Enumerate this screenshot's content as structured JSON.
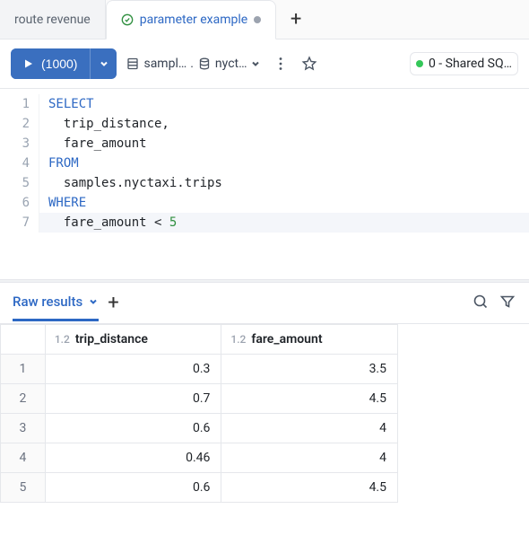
{
  "tabs": {
    "items": [
      {
        "label": "route revenue",
        "active": false
      },
      {
        "label": "parameter example",
        "active": true,
        "dirty": true,
        "status": "ok"
      }
    ]
  },
  "toolbar": {
    "run_count": "(1000)",
    "catalog_label": "sampl…",
    "schema_label": "nyct…",
    "cluster_label": "0 - Shared SQ…"
  },
  "editor": {
    "lines": [
      {
        "n": 1,
        "kw": "SELECT",
        "rest": ""
      },
      {
        "n": 2,
        "indent": 1,
        "rest": "trip_distance,"
      },
      {
        "n": 3,
        "indent": 1,
        "rest": "fare_amount"
      },
      {
        "n": 4,
        "kw": "FROM",
        "rest": ""
      },
      {
        "n": 5,
        "indent": 1,
        "rest": "samples.nyctaxi.trips"
      },
      {
        "n": 6,
        "kw": "WHERE",
        "rest": ""
      },
      {
        "n": 7,
        "indent": 1,
        "rest_pre": "fare_amount < ",
        "num": "5",
        "hl": true
      }
    ]
  },
  "results": {
    "tab_label": "Raw results",
    "type_tag": "1.2",
    "columns": [
      "trip_distance",
      "fare_amount"
    ],
    "rows": [
      [
        "0.3",
        "3.5"
      ],
      [
        "0.7",
        "4.5"
      ],
      [
        "0.6",
        "4"
      ],
      [
        "0.46",
        "4"
      ],
      [
        "0.6",
        "4.5"
      ]
    ]
  },
  "colors": {
    "accent": "#3a6fbf",
    "link": "#2d68c4",
    "status_ok": "#34c759"
  }
}
